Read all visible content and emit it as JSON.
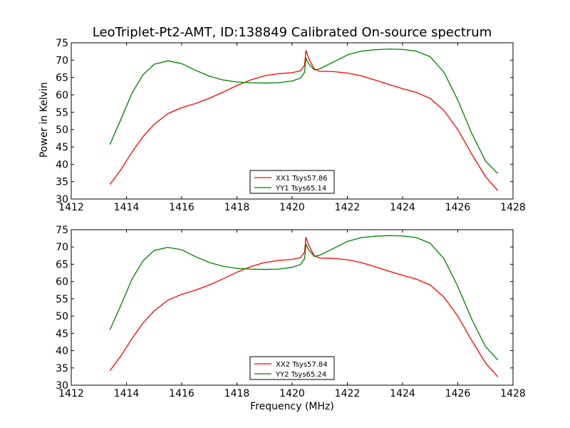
{
  "figure": {
    "title": "LeoTriplet-Pt2-AMT, ID:138849 Calibrated On-source spectrum",
    "ylabel": "Power in Kelvin",
    "xlabel": "Frequency (MHz)",
    "colors": {
      "XX": "#ff0000",
      "YY": "#008000",
      "axes": "#000000"
    }
  },
  "chart_data": [
    {
      "type": "line",
      "title": "LeoTriplet-Pt2-AMT, ID:138849 Calibrated On-source spectrum",
      "xlabel": "",
      "ylabel": "Power in Kelvin",
      "xlim": [
        1412,
        1428
      ],
      "ylim": [
        30,
        75
      ],
      "xticks": [
        1412,
        1414,
        1416,
        1418,
        1420,
        1422,
        1424,
        1426,
        1428
      ],
      "yticks": [
        30,
        35,
        40,
        45,
        50,
        55,
        60,
        65,
        70,
        75
      ],
      "grid": false,
      "legend_position": "lower center",
      "series": [
        {
          "name": "XX1 Tsys57.86",
          "color": "#ff0000",
          "x": [
            1413.4,
            1413.8,
            1414.2,
            1414.6,
            1415.0,
            1415.5,
            1416.0,
            1416.5,
            1417.0,
            1417.5,
            1418.0,
            1418.5,
            1419.0,
            1419.5,
            1420.0,
            1420.3,
            1420.45,
            1420.5,
            1420.6,
            1420.8,
            1421.0,
            1421.5,
            1422.0,
            1422.5,
            1423.0,
            1423.5,
            1424.0,
            1424.5,
            1425.0,
            1425.5,
            1426.0,
            1426.5,
            1427.0,
            1427.45
          ],
          "y": [
            34.2,
            38.5,
            43.5,
            48.0,
            51.5,
            54.6,
            56.3,
            57.5,
            59.0,
            60.8,
            62.7,
            64.3,
            65.5,
            66.1,
            66.4,
            66.9,
            68.5,
            72.8,
            70.5,
            67.5,
            66.8,
            66.7,
            66.3,
            65.5,
            64.3,
            63.0,
            61.8,
            60.7,
            59.0,
            55.5,
            50.0,
            43.0,
            36.5,
            32.4
          ]
        },
        {
          "name": "YY1 Tsys65.14",
          "color": "#008000",
          "x": [
            1413.4,
            1413.8,
            1414.2,
            1414.6,
            1415.0,
            1415.5,
            1416.0,
            1416.5,
            1417.0,
            1417.5,
            1418.0,
            1418.5,
            1419.0,
            1419.5,
            1420.0,
            1420.3,
            1420.45,
            1420.5,
            1420.6,
            1420.8,
            1421.0,
            1421.5,
            1422.0,
            1422.5,
            1423.0,
            1423.5,
            1424.0,
            1424.5,
            1425.0,
            1425.5,
            1426.0,
            1426.5,
            1427.0,
            1427.45
          ],
          "y": [
            45.7,
            53.0,
            60.5,
            65.8,
            68.8,
            69.8,
            69.0,
            67.1,
            65.4,
            64.3,
            63.7,
            63.5,
            63.4,
            63.5,
            64.0,
            64.8,
            66.5,
            70.6,
            69.0,
            67.2,
            67.5,
            69.5,
            71.5,
            72.6,
            73.0,
            73.2,
            73.1,
            72.6,
            71.0,
            66.5,
            58.5,
            49.0,
            41.0,
            37.3
          ]
        }
      ]
    },
    {
      "type": "line",
      "title": "",
      "xlabel": "Frequency (MHz)",
      "ylabel": "",
      "xlim": [
        1412,
        1428
      ],
      "ylim": [
        30,
        75
      ],
      "xticks": [
        1412,
        1414,
        1416,
        1418,
        1420,
        1422,
        1424,
        1426,
        1428
      ],
      "yticks": [
        30,
        35,
        40,
        45,
        50,
        55,
        60,
        65,
        70,
        75
      ],
      "grid": false,
      "legend_position": "lower center",
      "series": [
        {
          "name": "XX2 Tsys57.84",
          "color": "#ff0000",
          "x": [
            1413.4,
            1413.8,
            1414.2,
            1414.6,
            1415.0,
            1415.5,
            1416.0,
            1416.5,
            1417.0,
            1417.5,
            1418.0,
            1418.5,
            1419.0,
            1419.5,
            1420.0,
            1420.3,
            1420.45,
            1420.5,
            1420.6,
            1420.8,
            1421.0,
            1421.5,
            1422.0,
            1422.5,
            1423.0,
            1423.5,
            1424.0,
            1424.5,
            1425.0,
            1425.5,
            1426.0,
            1426.5,
            1427.0,
            1427.45
          ],
          "y": [
            34.2,
            38.5,
            43.5,
            48.0,
            51.5,
            54.6,
            56.3,
            57.5,
            59.0,
            60.8,
            62.7,
            64.3,
            65.5,
            66.1,
            66.4,
            66.9,
            68.5,
            72.8,
            70.5,
            67.5,
            66.8,
            66.7,
            66.3,
            65.5,
            64.3,
            63.0,
            61.8,
            60.7,
            59.0,
            55.5,
            50.0,
            43.0,
            36.5,
            32.4
          ]
        },
        {
          "name": "YY2 Tsys65.24",
          "color": "#008000",
          "x": [
            1413.4,
            1413.8,
            1414.2,
            1414.6,
            1415.0,
            1415.5,
            1416.0,
            1416.5,
            1417.0,
            1417.5,
            1418.0,
            1418.5,
            1419.0,
            1419.5,
            1420.0,
            1420.3,
            1420.45,
            1420.5,
            1420.6,
            1420.8,
            1421.0,
            1421.5,
            1422.0,
            1422.5,
            1423.0,
            1423.5,
            1424.0,
            1424.5,
            1425.0,
            1425.5,
            1426.0,
            1426.5,
            1427.0,
            1427.45
          ],
          "y": [
            46.0,
            53.2,
            60.7,
            66.0,
            69.0,
            69.9,
            69.2,
            67.2,
            65.5,
            64.4,
            63.8,
            63.6,
            63.5,
            63.6,
            64.1,
            64.9,
            66.6,
            70.8,
            69.2,
            67.3,
            67.6,
            69.6,
            71.6,
            72.7,
            73.1,
            73.3,
            73.2,
            72.7,
            71.1,
            66.6,
            58.6,
            49.2,
            41.2,
            37.3
          ]
        }
      ]
    }
  ]
}
